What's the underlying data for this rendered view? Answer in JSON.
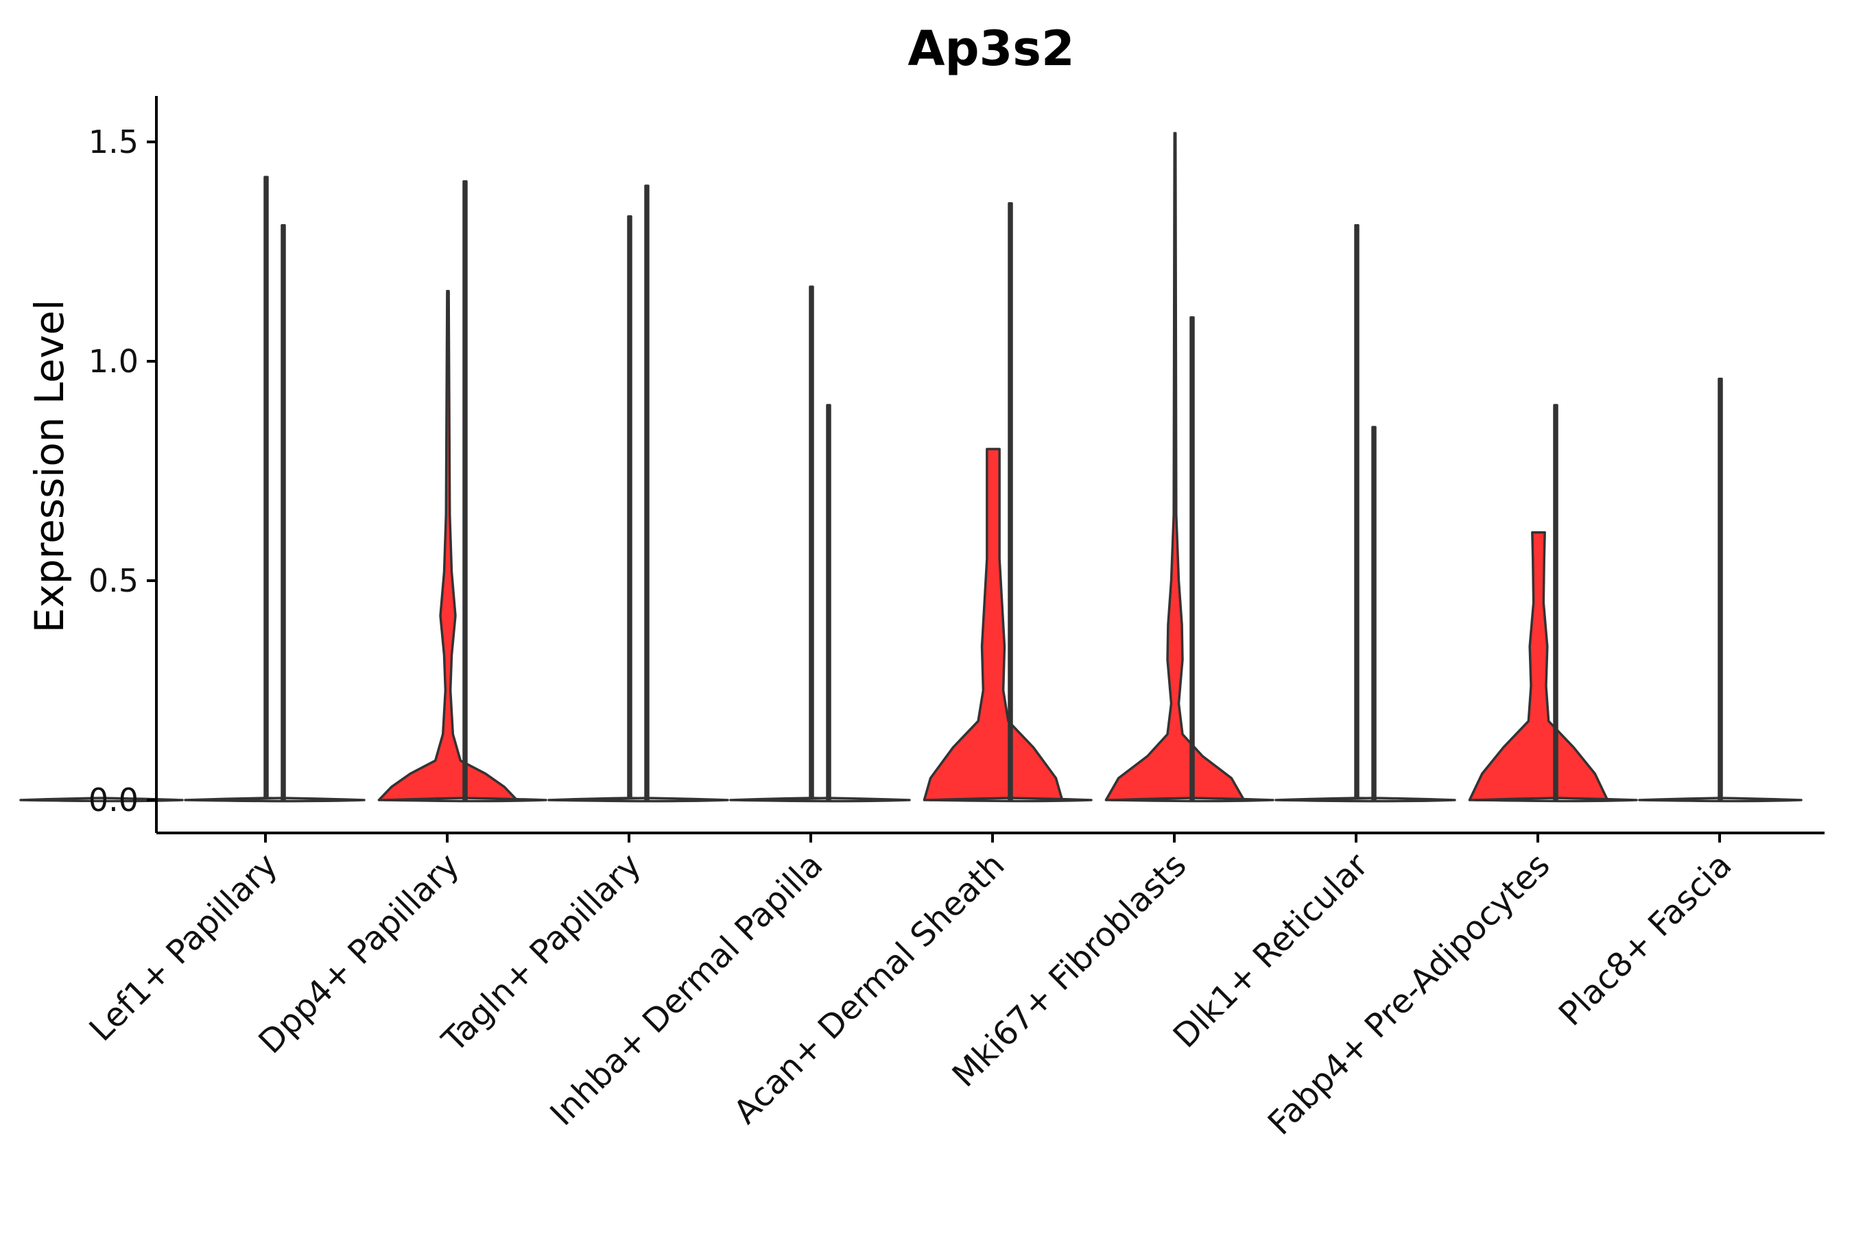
{
  "chart_data": {
    "type": "violin",
    "title": "Ap3s2",
    "xlabel": "",
    "ylabel": "Expression Level",
    "ylim": [
      -0.075,
      1.6
    ],
    "yticks": [
      0.0,
      0.5,
      1.0,
      1.5
    ],
    "ytick_labels": [
      "0.0",
      "0.5",
      "1.0",
      "1.5"
    ],
    "split_violins": true,
    "groups": [
      "Lef1+ Papillary",
      "Dpp4+ Papillary",
      "Tagln+ Papillary",
      "Inhba+ Dermal Papilla",
      "Acan+ Dermal Sheath",
      "Mki67+ Fibroblasts",
      "Dlk1+ Reticular",
      "Fabp4+ Pre-Adipocytes",
      "Plac8+ Fascia"
    ],
    "series": [
      {
        "name": "left",
        "color": "#ffffff",
        "max_values": [
          0,
          1.31,
          1.41,
          1.4,
          0.9,
          1.36,
          1.1,
          0.85,
          0.9
        ],
        "shape": "flat-zero"
      },
      {
        "name": "right",
        "color": "#ff3333",
        "max_values": [
          1.42,
          1.16,
          1.33,
          1.17,
          0.8,
          1.52,
          1.31,
          0.61,
          0.96
        ],
        "shape": [
          "flat",
          "peak",
          "flat",
          "flat",
          "peak",
          "peak",
          "flat",
          "peak",
          "flat"
        ]
      }
    ]
  }
}
